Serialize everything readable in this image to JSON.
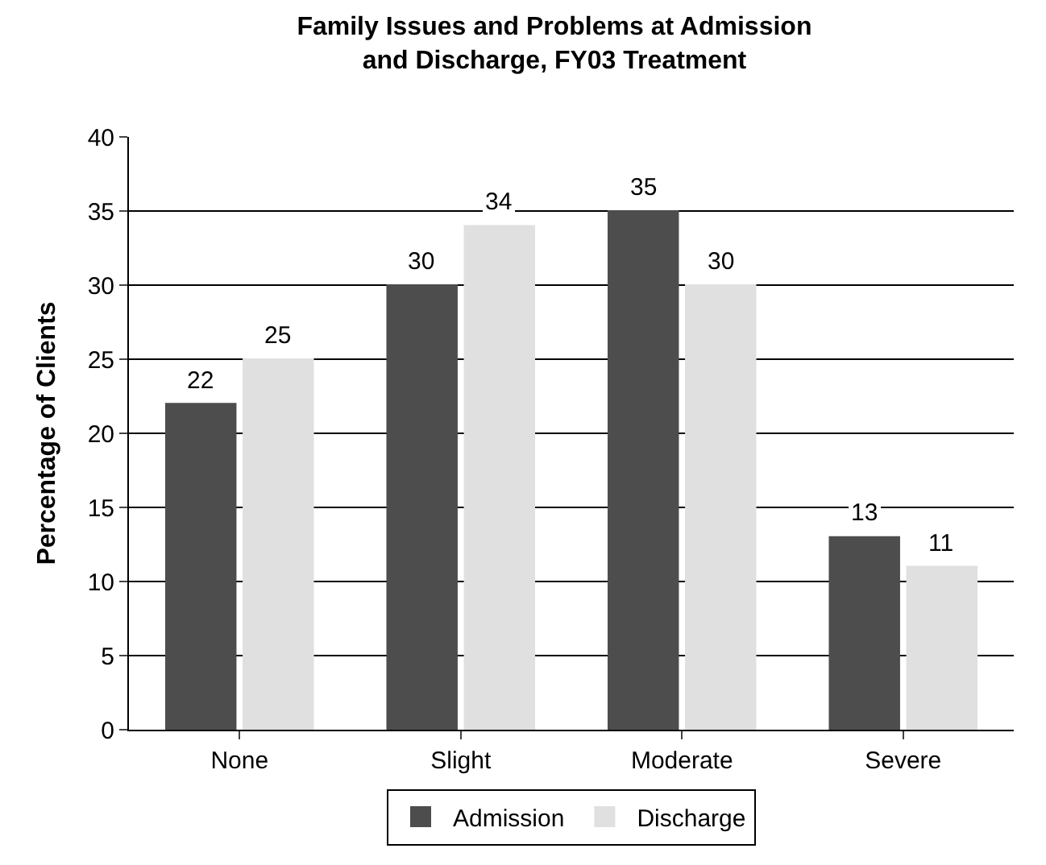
{
  "chart_data": {
    "type": "bar",
    "title": "Family Issues and Problems at Admission\nand Discharge, FY03 Treatment",
    "ylabel": "Percentage of Clients",
    "categories": [
      "None",
      "Slight",
      "Moderate",
      "Severe"
    ],
    "series": [
      {
        "name": "Admission",
        "color": "#4d4d4d",
        "values": [
          22,
          30,
          35,
          13
        ]
      },
      {
        "name": "Discharge",
        "color": "#e0e0e0",
        "values": [
          25,
          34,
          30,
          11
        ]
      }
    ],
    "ylim": [
      0,
      40
    ],
    "yticks": [
      0,
      5,
      10,
      15,
      20,
      25,
      30,
      35,
      40
    ],
    "grid": "y",
    "legend": "bottom",
    "data_labels": true
  }
}
